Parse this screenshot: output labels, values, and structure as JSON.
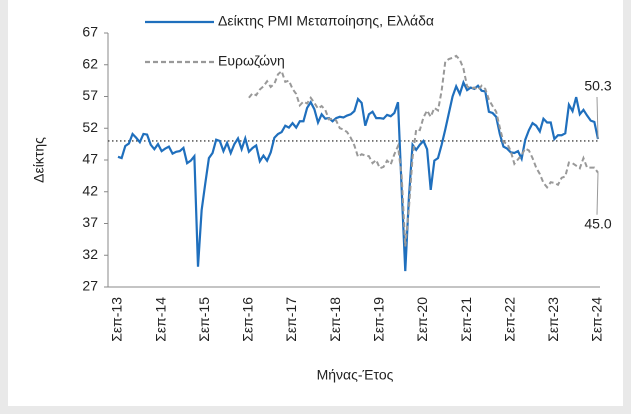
{
  "chart_data": {
    "type": "line",
    "y_label": "Δείκτης",
    "x_label": "Μήνας-Έτος",
    "categories": [
      "Σεπ-13",
      null,
      null,
      null,
      null,
      null,
      null,
      null,
      null,
      null,
      null,
      null,
      "Σεπ-14",
      null,
      null,
      null,
      null,
      null,
      null,
      null,
      null,
      null,
      null,
      null,
      "Σεπ-15",
      null,
      null,
      null,
      null,
      null,
      null,
      null,
      null,
      null,
      null,
      null,
      "Σεπ-16",
      null,
      null,
      null,
      null,
      null,
      null,
      null,
      null,
      null,
      null,
      null,
      "Σεπ-17",
      null,
      null,
      null,
      null,
      null,
      null,
      null,
      null,
      null,
      null,
      null,
      "Σεπ-18",
      null,
      null,
      null,
      null,
      null,
      null,
      null,
      null,
      null,
      null,
      null,
      "Σεπ-19",
      null,
      null,
      null,
      null,
      null,
      null,
      null,
      null,
      null,
      null,
      null,
      "Σεπ-20",
      null,
      null,
      null,
      null,
      null,
      null,
      null,
      null,
      null,
      null,
      null,
      "Σεπ-21",
      null,
      null,
      null,
      null,
      null,
      null,
      null,
      null,
      null,
      null,
      null,
      "Σεπ-22",
      null,
      null,
      null,
      null,
      null,
      null,
      null,
      null,
      null,
      null,
      null,
      "Σεπ-23",
      null,
      null,
      null,
      null,
      null,
      null,
      null,
      null,
      null,
      null,
      null,
      "Σεπ-24"
    ],
    "series": [
      {
        "name": "Δείκτης PMI Μεταποίησης, Ελλάδα",
        "color": "#1f6fbd",
        "dash": false,
        "end_label": "50.3",
        "values": [
          47.5,
          47.3,
          49.2,
          49.6,
          51.1,
          50.5,
          49.8,
          51.1,
          51.0,
          49.4,
          48.7,
          49.5,
          48.4,
          48.8,
          49.1,
          48.0,
          48.3,
          48.4,
          48.9,
          46.5,
          46.9,
          47.6,
          30.2,
          39.1,
          43.3,
          47.3,
          48.1,
          50.2,
          50.0,
          48.4,
          49.7,
          48.1,
          49.5,
          50.4,
          48.7,
          50.4,
          48.3,
          48.9,
          49.3,
          46.8,
          47.7,
          46.9,
          48.2,
          50.5,
          51.1,
          51.4,
          52.4,
          52.1,
          52.8,
          52.1,
          53.1,
          53.1,
          55.2,
          56.1,
          55.0,
          52.9,
          54.2,
          53.5,
          53.6,
          53.1,
          53.6,
          53.8,
          53.7,
          54.0,
          54.2,
          54.7,
          56.6,
          56.0,
          52.4,
          54.2,
          54.6,
          53.6,
          53.6,
          53.5,
          54.1,
          53.9,
          54.4,
          56.1,
          42.5,
          29.5,
          41.1,
          49.4,
          48.6,
          49.4,
          50.0,
          48.7,
          42.3,
          46.9,
          47.3,
          49.4,
          51.8,
          54.4,
          57.0,
          58.6,
          57.4,
          59.2,
          58.0,
          58.4,
          58.2,
          58.7,
          57.9,
          57.8,
          54.6,
          54.4,
          53.8,
          51.1,
          49.1,
          48.8,
          48.2,
          48.1,
          48.4,
          47.2,
          50.2,
          51.7,
          52.8,
          52.4,
          51.5,
          53.5,
          52.9,
          52.9,
          50.3,
          50.9,
          50.9,
          51.2,
          55.7,
          54.7,
          56.9,
          54.2,
          54.9,
          54.0,
          53.2,
          53.0,
          50.3
        ]
      },
      {
        "name": "Ευρωζώνη",
        "color": "#999999",
        "dash": true,
        "end_label": "45.0",
        "values": [
          null,
          null,
          null,
          null,
          null,
          null,
          null,
          null,
          null,
          null,
          null,
          null,
          null,
          null,
          null,
          null,
          null,
          null,
          null,
          null,
          null,
          null,
          null,
          null,
          null,
          null,
          null,
          null,
          null,
          null,
          null,
          null,
          null,
          null,
          null,
          null,
          56.8,
          57.5,
          57.2,
          58.1,
          58.6,
          59.4,
          58.5,
          59.0,
          60.5,
          61.0,
          59.3,
          59.5,
          58.2,
          57.4,
          55.6,
          56.2,
          55.9,
          56.8,
          56.0,
          55.1,
          55.5,
          54.9,
          53.4,
          53.5,
          53.2,
          52.0,
          51.8,
          51.4,
          50.5,
          49.3,
          47.5,
          47.9,
          47.7,
          47.6,
          46.5,
          47.0,
          45.7,
          45.9,
          46.9,
          46.3,
          47.9,
          49.2,
          44.5,
          33.4,
          39.4,
          47.4,
          51.8,
          51.7,
          53.7,
          54.8,
          53.8,
          55.2,
          54.8,
          57.9,
          62.5,
          62.9,
          63.1,
          63.4,
          62.8,
          61.4,
          58.6,
          58.3,
          58.4,
          58.0,
          58.7,
          58.2,
          56.5,
          55.5,
          54.6,
          52.1,
          49.8,
          49.6,
          48.4,
          46.4,
          47.1,
          47.8,
          48.8,
          48.5,
          47.3,
          45.8,
          44.8,
          43.4,
          42.7,
          43.5,
          43.4,
          43.1,
          44.2,
          44.4,
          46.6,
          46.5,
          46.1,
          45.7,
          47.3,
          45.8,
          45.8,
          45.8,
          45.0
        ]
      }
    ],
    "reference_line": 50,
    "ylim": [
      27,
      67
    ],
    "yticks": [
      27,
      32,
      37,
      42,
      47,
      52,
      57,
      62,
      67
    ],
    "grid": false
  }
}
